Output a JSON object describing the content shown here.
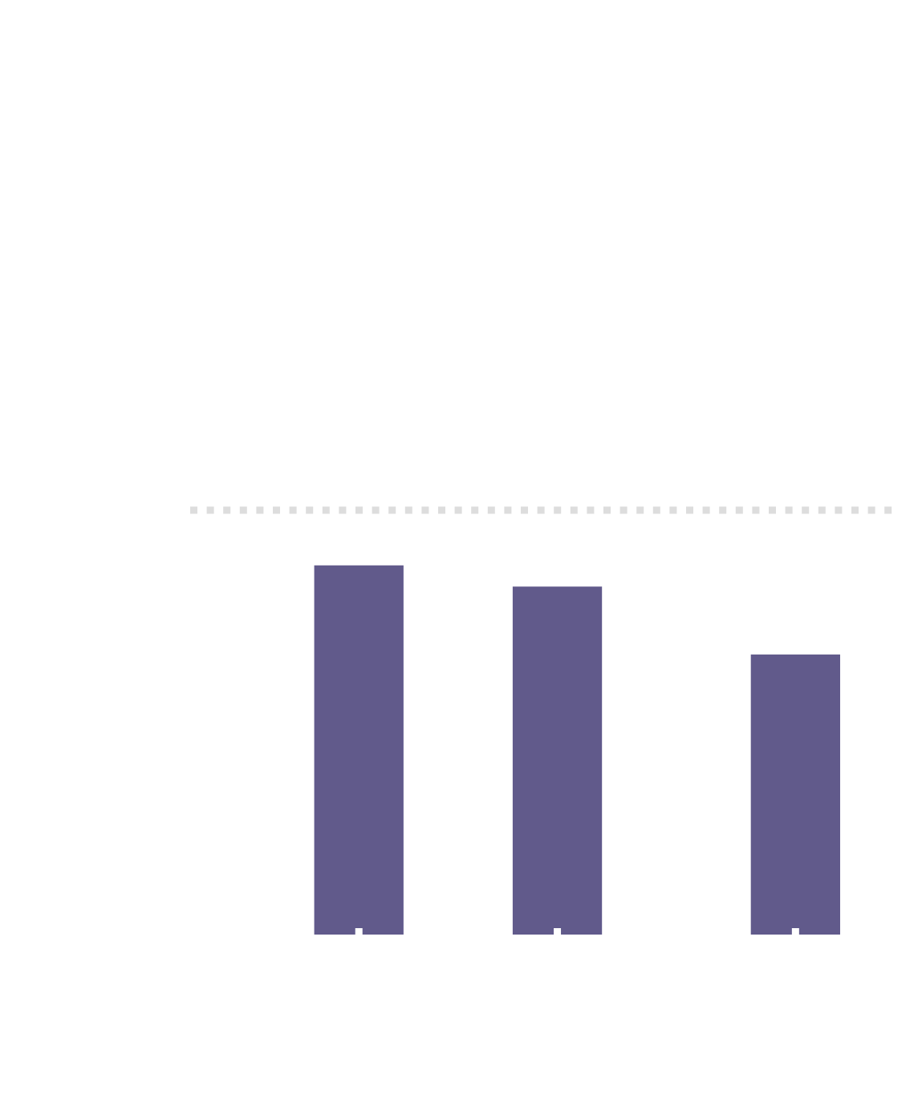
{
  "chart_data": {
    "type": "bar",
    "x": [
      1,
      2,
      3.2
    ],
    "values": [
      87,
      82,
      66
    ],
    "color": "#615a8b",
    "xlim": [
      0.15,
      3.7
    ],
    "xticks": [
      1,
      2,
      3.2
    ],
    "ylim": [
      0,
      100
    ],
    "yticks": [
      100
    ],
    "grid": true
  }
}
